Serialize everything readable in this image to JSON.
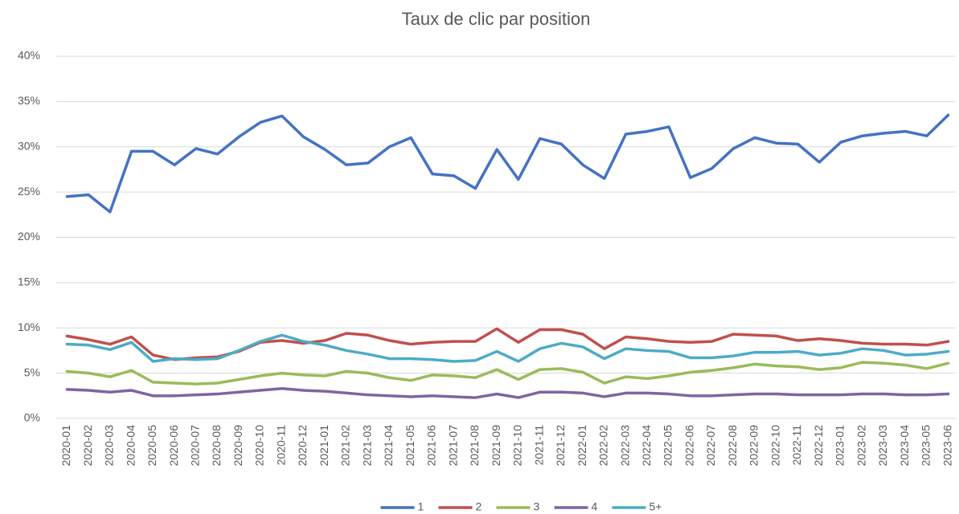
{
  "chart_data": {
    "type": "line",
    "title": "Taux de clic par position",
    "categories": [
      "2020-01",
      "2020-02",
      "2020-03",
      "2020-04",
      "2020-05",
      "2020-06",
      "2020-07",
      "2020-08",
      "2020-09",
      "2020-10",
      "2020-11",
      "2020-12",
      "2021-01",
      "2021-02",
      "2021-03",
      "2021-04",
      "2021-05",
      "2021-06",
      "2021-07",
      "2021-08",
      "2021-09",
      "2021-10",
      "2021-11",
      "2021-12",
      "2022-01",
      "2022-02",
      "2022-03",
      "2022-04",
      "2022-05",
      "2022-06",
      "2022-07",
      "2022-08",
      "2022-09",
      "2022-10",
      "2022-11",
      "2022-12",
      "2023-01",
      "2023-02",
      "2023-03",
      "2023-04",
      "2023-05",
      "2023-06"
    ],
    "series": [
      {
        "name": "1",
        "color": "#4472c4",
        "values": [
          24.5,
          24.7,
          22.8,
          29.5,
          29.5,
          28.0,
          29.8,
          29.2,
          31.1,
          32.7,
          33.4,
          31.1,
          29.7,
          28.0,
          28.2,
          30.0,
          31.0,
          27.0,
          26.8,
          25.4,
          29.7,
          26.4,
          30.9,
          30.3,
          28.0,
          26.5,
          31.4,
          31.7,
          32.2,
          26.6,
          27.6,
          29.8,
          31.0,
          30.4,
          30.3,
          28.3,
          30.5,
          31.2,
          31.5,
          31.7,
          31.2,
          33.5
        ]
      },
      {
        "name": "2",
        "color": "#c0504d",
        "values": [
          9.1,
          8.7,
          8.2,
          9.0,
          7.0,
          6.5,
          6.7,
          6.8,
          7.4,
          8.4,
          8.6,
          8.3,
          8.6,
          9.4,
          9.2,
          8.6,
          8.2,
          8.4,
          8.5,
          8.5,
          9.9,
          8.4,
          9.8,
          9.8,
          9.3,
          7.7,
          9.0,
          8.8,
          8.5,
          8.4,
          8.5,
          9.3,
          9.2,
          9.1,
          8.6,
          8.8,
          8.6,
          8.3,
          8.2,
          8.2,
          8.1,
          8.5
        ]
      },
      {
        "name": "3",
        "color": "#9bbb59",
        "values": [
          5.2,
          5.0,
          4.6,
          5.3,
          4.0,
          3.9,
          3.8,
          3.9,
          4.3,
          4.7,
          5.0,
          4.8,
          4.7,
          5.2,
          5.0,
          4.5,
          4.2,
          4.8,
          4.7,
          4.5,
          5.4,
          4.3,
          5.4,
          5.5,
          5.1,
          3.9,
          4.6,
          4.4,
          4.7,
          5.1,
          5.3,
          5.6,
          6.0,
          5.8,
          5.7,
          5.4,
          5.6,
          6.2,
          6.1,
          5.9,
          5.5,
          6.1
        ]
      },
      {
        "name": "4",
        "color": "#8064a2",
        "values": [
          3.2,
          3.1,
          2.9,
          3.1,
          2.5,
          2.5,
          2.6,
          2.7,
          2.9,
          3.1,
          3.3,
          3.1,
          3.0,
          2.8,
          2.6,
          2.5,
          2.4,
          2.5,
          2.4,
          2.3,
          2.7,
          2.3,
          2.9,
          2.9,
          2.8,
          2.4,
          2.8,
          2.8,
          2.7,
          2.5,
          2.5,
          2.6,
          2.7,
          2.7,
          2.6,
          2.6,
          2.6,
          2.7,
          2.7,
          2.6,
          2.6,
          2.7
        ]
      },
      {
        "name": "5+",
        "color": "#4bacc6",
        "values": [
          8.2,
          8.1,
          7.6,
          8.4,
          6.3,
          6.6,
          6.5,
          6.6,
          7.5,
          8.5,
          9.2,
          8.5,
          8.1,
          7.5,
          7.1,
          6.6,
          6.6,
          6.5,
          6.3,
          6.4,
          7.4,
          6.3,
          7.7,
          8.3,
          7.9,
          6.6,
          7.7,
          7.5,
          7.4,
          6.7,
          6.7,
          6.9,
          7.3,
          7.3,
          7.4,
          7.0,
          7.2,
          7.7,
          7.5,
          7.0,
          7.1,
          7.4
        ]
      }
    ],
    "ylim": [
      0,
      40
    ],
    "yticks": [
      {
        "value": 0,
        "label": "0%"
      },
      {
        "value": 5,
        "label": "5%"
      },
      {
        "value": 10,
        "label": "10%"
      },
      {
        "value": 15,
        "label": "15%"
      },
      {
        "value": 20,
        "label": "20%"
      },
      {
        "value": 25,
        "label": "25%"
      },
      {
        "value": 30,
        "label": "30%"
      },
      {
        "value": 35,
        "label": "35%"
      },
      {
        "value": 40,
        "label": "40%"
      }
    ],
    "grid": true,
    "legend": "bottom"
  }
}
